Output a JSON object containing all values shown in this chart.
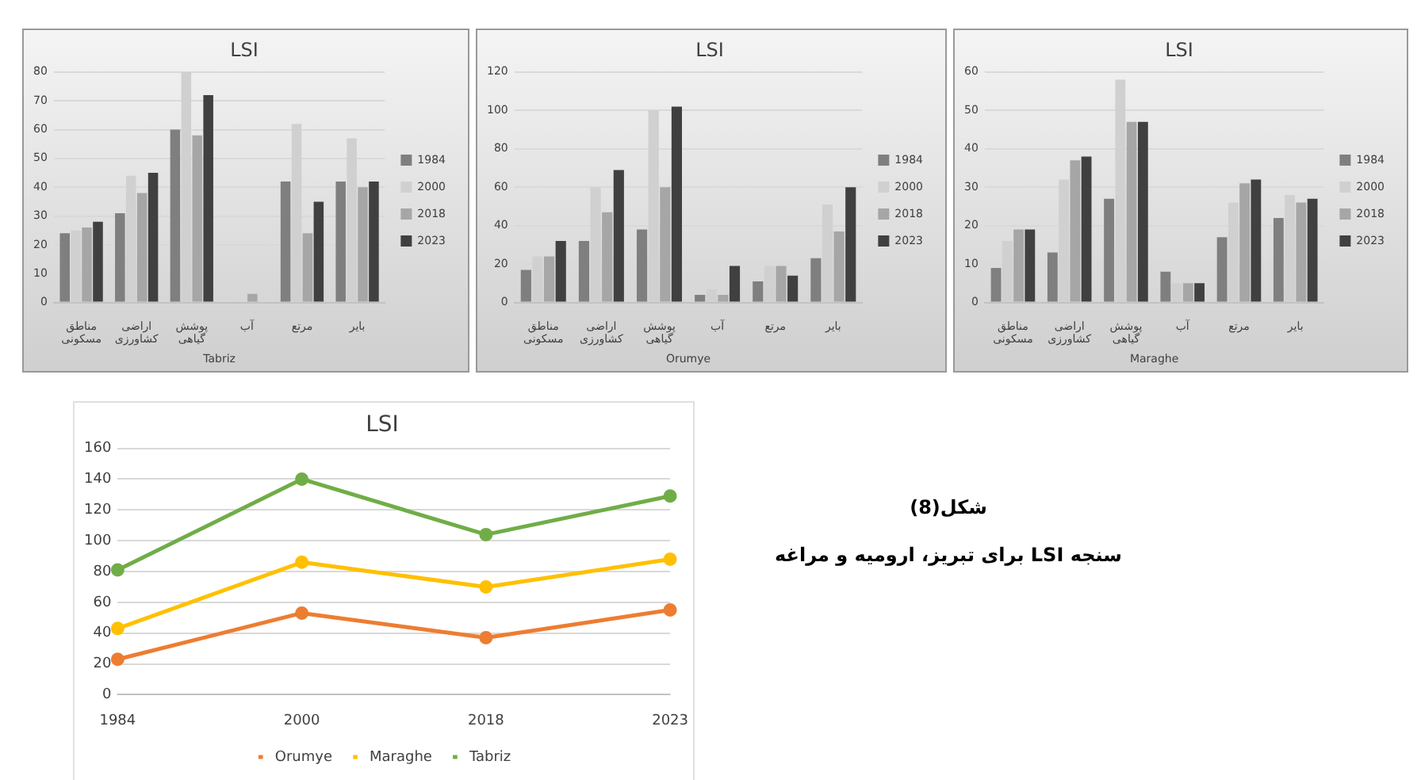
{
  "chart_data": [
    {
      "type": "bar",
      "title": "LSI",
      "xlabel": "Tabriz",
      "categories": [
        "مناطق مسکونی",
        "اراضی کشاورزی",
        "پوشش گیاهی",
        "آب",
        "مرتع",
        "بایر"
      ],
      "series": [
        {
          "name": "1984",
          "color": "#7f7f7f",
          "values": [
            24,
            31,
            60,
            0,
            42,
            42
          ]
        },
        {
          "name": "2000",
          "color": "#d0d0d0",
          "values": [
            25,
            44,
            80,
            0,
            62,
            57
          ]
        },
        {
          "name": "2018",
          "color": "#a6a6a6",
          "values": [
            26,
            38,
            58,
            3,
            24,
            40
          ]
        },
        {
          "name": "2023",
          "color": "#404040",
          "values": [
            28,
            45,
            72,
            0,
            35,
            42
          ]
        }
      ],
      "ylim": [
        0,
        80
      ],
      "yticks": [
        0,
        10,
        20,
        30,
        40,
        50,
        60,
        70,
        80
      ],
      "grid": "y",
      "legend": "right"
    },
    {
      "type": "bar",
      "title": "LSI",
      "xlabel": "Orumye",
      "categories": [
        "مناطق مسکونی",
        "اراضی کشاورزی",
        "پوشش گیاهی",
        "آب",
        "مرتع",
        "بایر"
      ],
      "series": [
        {
          "name": "1984",
          "color": "#7f7f7f",
          "values": [
            17,
            32,
            38,
            4,
            11,
            23
          ]
        },
        {
          "name": "2000",
          "color": "#d0d0d0",
          "values": [
            24,
            60,
            100,
            7,
            19,
            51
          ]
        },
        {
          "name": "2018",
          "color": "#a6a6a6",
          "values": [
            24,
            47,
            60,
            4,
            19,
            37
          ]
        },
        {
          "name": "2023",
          "color": "#404040",
          "values": [
            32,
            69,
            102,
            19,
            14,
            60
          ]
        }
      ],
      "ylim": [
        0,
        120
      ],
      "yticks": [
        0,
        20,
        40,
        60,
        80,
        100,
        120
      ],
      "grid": "y",
      "legend": "right"
    },
    {
      "type": "bar",
      "title": "LSI",
      "xlabel": "Maraghe",
      "categories": [
        "مناطق مسکونی",
        "اراضی کشاورزی",
        "پوشش گیاهی",
        "آب",
        "مرتع",
        "بایر"
      ],
      "series": [
        {
          "name": "1984",
          "color": "#7f7f7f",
          "values": [
            9,
            13,
            27,
            8,
            17,
            22
          ]
        },
        {
          "name": "2000",
          "color": "#d0d0d0",
          "values": [
            16,
            32,
            58,
            5,
            26,
            28
          ]
        },
        {
          "name": "2018",
          "color": "#a6a6a6",
          "values": [
            19,
            37,
            47,
            5,
            31,
            26
          ]
        },
        {
          "name": "2023",
          "color": "#404040",
          "values": [
            19,
            38,
            47,
            5,
            32,
            27
          ]
        }
      ],
      "ylim": [
        0,
        60
      ],
      "yticks": [
        0,
        10,
        20,
        30,
        40,
        50,
        60
      ],
      "grid": "y",
      "legend": "right"
    },
    {
      "type": "line",
      "title": "LSI",
      "categories": [
        "1984",
        "2000",
        "2018",
        "2023"
      ],
      "series": [
        {
          "name": "Orumye",
          "color": "#ed7d31",
          "values": [
            23,
            53,
            37,
            55
          ]
        },
        {
          "name": "Maraghe",
          "color": "#ffc000",
          "values": [
            43,
            86,
            70,
            88
          ]
        },
        {
          "name": "Tabriz",
          "color": "#70ad47",
          "values": [
            81,
            140,
            104,
            129
          ]
        }
      ],
      "ylim": [
        0,
        160
      ],
      "yticks": [
        0,
        20,
        40,
        60,
        80,
        100,
        120,
        140,
        160
      ],
      "grid": "y",
      "legend": "bottom",
      "marker": "circle",
      "annotations": [
        "شکل(8)",
        "سنجه LSI برای تبریز، ارومیه و مراغه"
      ]
    }
  ]
}
